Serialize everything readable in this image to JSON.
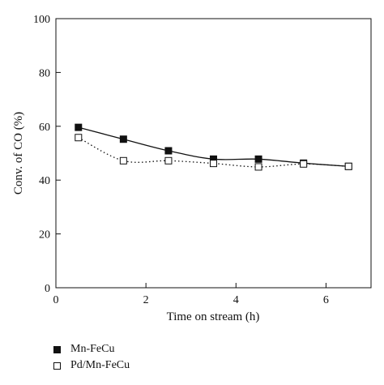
{
  "chart_data": {
    "type": "scatter",
    "xlabel": "Time on stream (h)",
    "ylabel": "Conv. of CO (%)",
    "xlim": [
      0,
      7
    ],
    "ylim": [
      0,
      100
    ],
    "xticks": [
      "0",
      "2",
      "4",
      "6"
    ],
    "yticks": [
      "0",
      "20",
      "40",
      "60",
      "80",
      "100"
    ],
    "grid": false,
    "legend_position": "bottom-left",
    "series": [
      {
        "name": "Mn-FeCu",
        "marker": "filled-square",
        "line": "solid",
        "color": "#111111",
        "x": [
          0.5,
          1.5,
          2.5,
          3.5,
          4.5,
          5.5,
          6.5
        ],
        "y": [
          59.6,
          55.2,
          50.9,
          47.8,
          47.8,
          46.3,
          45.1
        ]
      },
      {
        "name": "Pd/Mn-FeCu",
        "marker": "open-square",
        "line": "dotted",
        "color": "#111111",
        "x": [
          0.5,
          1.5,
          2.5,
          3.5,
          4.5,
          5.5,
          6.5
        ],
        "y": [
          55.8,
          47.2,
          47.2,
          46.2,
          44.9,
          46.0,
          45.1
        ]
      }
    ]
  }
}
